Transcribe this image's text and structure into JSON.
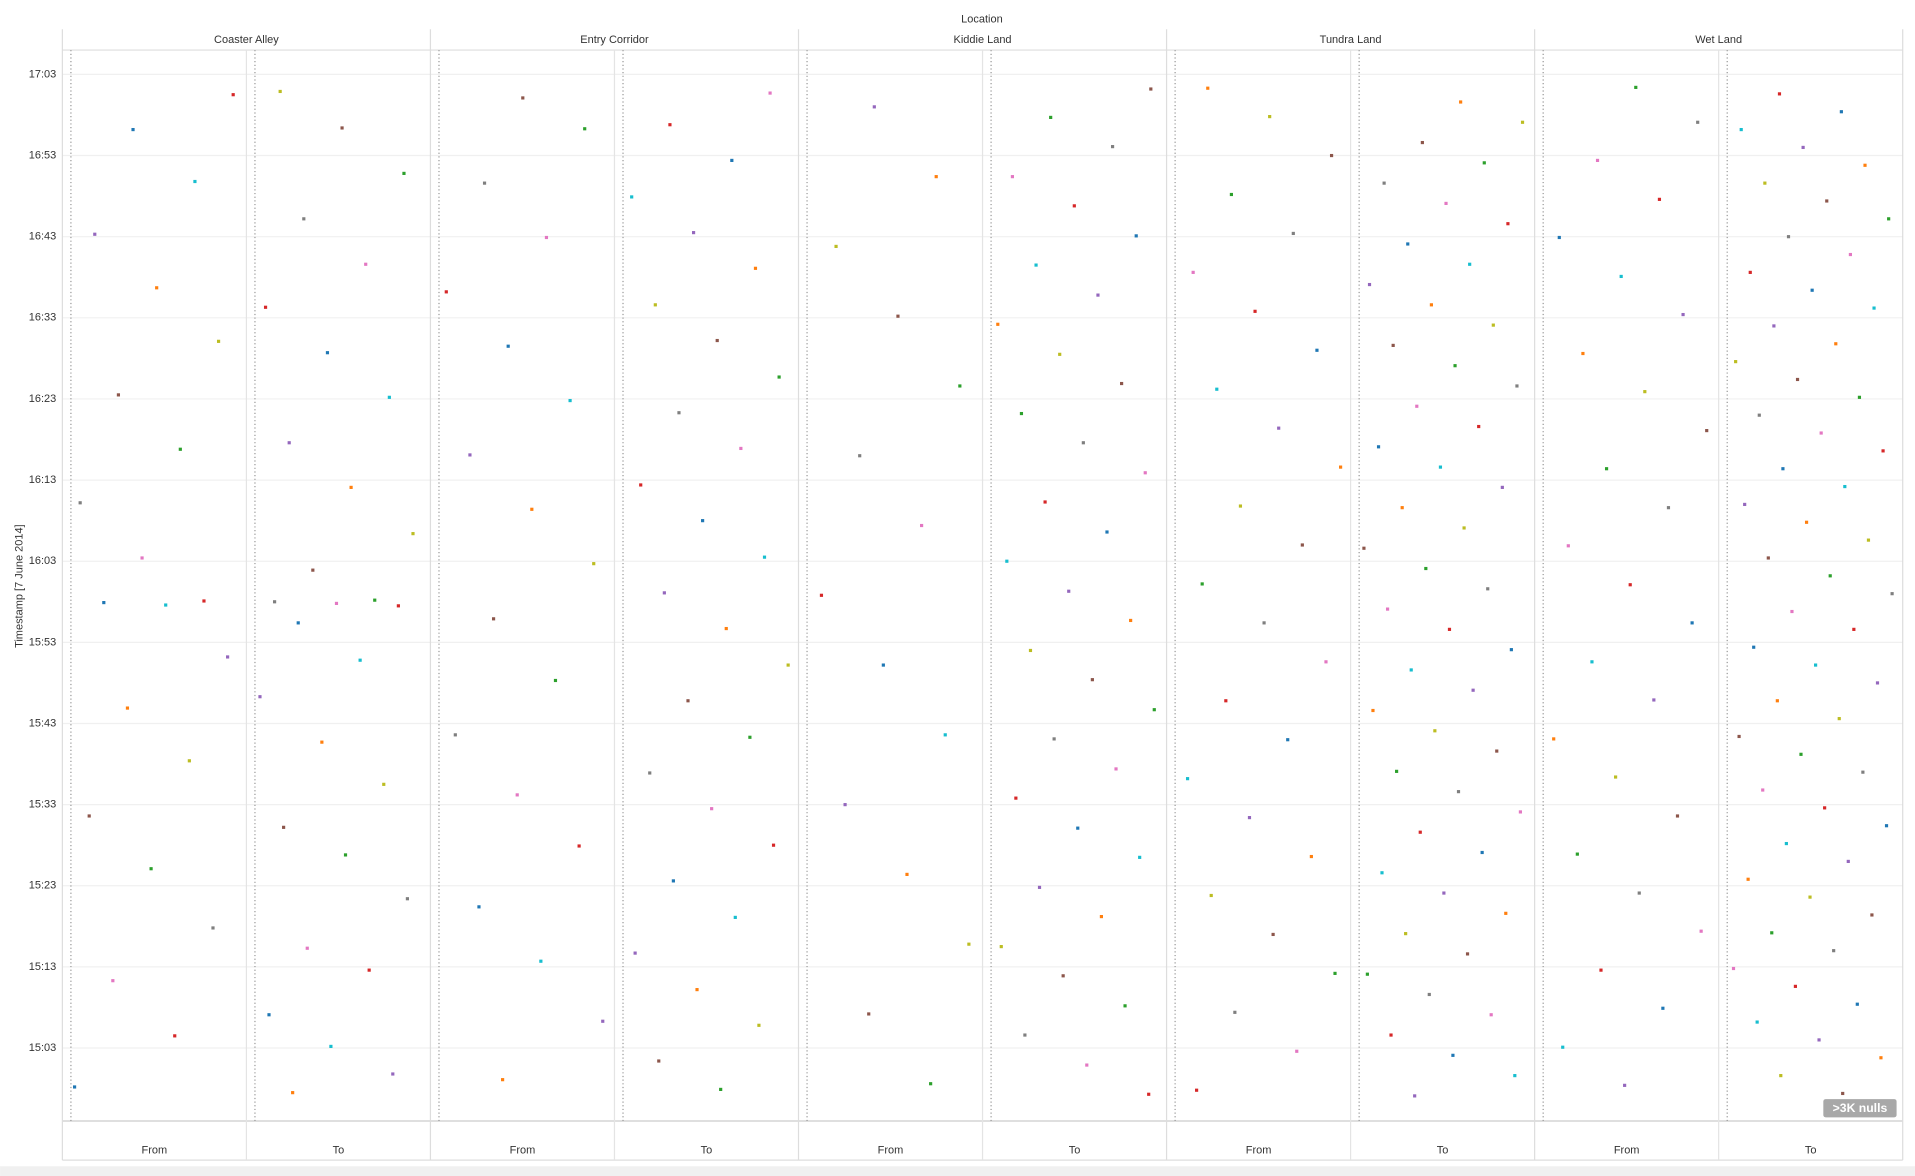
{
  "chart_data": {
    "type": "scatter",
    "title": "Location",
    "y_label": "Timestamp [7 June 2014]",
    "facets": [
      "Coaster Alley",
      "Entry Corridor",
      "Kiddie Land",
      "Tundra Land",
      "Wet Land"
    ],
    "subcolumns": [
      "From",
      "To"
    ],
    "ylim": [
      894,
      1026
    ],
    "yticks": [
      {
        "value": 903,
        "label": "15:03"
      },
      {
        "value": 913,
        "label": "15:13"
      },
      {
        "value": 923,
        "label": "15:23"
      },
      {
        "value": 933,
        "label": "15:33"
      },
      {
        "value": 943,
        "label": "15:43"
      },
      {
        "value": 953,
        "label": "15:53"
      },
      {
        "value": 963,
        "label": "16:03"
      },
      {
        "value": 973,
        "label": "16:13"
      },
      {
        "value": 983,
        "label": "16:23"
      },
      {
        "value": 993,
        "label": "16:33"
      },
      {
        "value": 1003,
        "label": "16:43"
      },
      {
        "value": 1013,
        "label": "16:53"
      },
      {
        "value": 1023,
        "label": "17:03"
      }
    ],
    "grid": true,
    "colors": [
      "#1f77b4",
      "#ff7f0e",
      "#2ca02c",
      "#d62728",
      "#9467bd",
      "#8c564b",
      "#e377c2",
      "#17becf",
      "#bcbd22",
      "#7f7f7f"
    ],
    "nulls_indicator": ">3K nulls",
    "panels": [
      {
        "from": [
          898.2,
          904.5,
          911.3,
          917.8,
          925.1,
          931.6,
          938.4,
          944.9,
          951.2,
          957.6,
          957.9,
          958.1,
          963.4,
          970.2,
          976.8,
          983.5,
          990.1,
          996.7,
          1003.3,
          1009.8,
          1016.2,
          1020.5
        ],
        "to": [
          897.5,
          899.8,
          903.2,
          907.1,
          912.6,
          915.3,
          921.4,
          926.8,
          930.2,
          935.5,
          940.7,
          946.3,
          950.8,
          955.4,
          957.5,
          957.8,
          958.0,
          958.2,
          961.9,
          966.4,
          972.1,
          977.6,
          983.2,
          988.7,
          994.3,
          999.6,
          1005.2,
          1010.8,
          1016.4,
          1020.9
        ]
      },
      {
        "from": [
          899.1,
          906.3,
          913.7,
          920.4,
          927.9,
          934.2,
          941.6,
          948.3,
          955.9,
          962.7,
          969.4,
          976.1,
          982.8,
          989.5,
          996.2,
          1002.9,
          1009.6,
          1016.3,
          1020.1
        ],
        "to": [
          897.9,
          901.4,
          905.8,
          910.2,
          914.7,
          919.1,
          923.6,
          928.0,
          932.5,
          936.9,
          941.3,
          945.8,
          950.2,
          954.7,
          959.1,
          963.5,
          968.0,
          972.4,
          976.9,
          981.3,
          985.7,
          990.2,
          994.6,
          999.1,
          1003.5,
          1007.9,
          1012.4,
          1016.8,
          1020.7
        ]
      },
      {
        "from": [
          898.6,
          907.2,
          915.8,
          924.4,
          933.0,
          941.6,
          950.2,
          958.8,
          967.4,
          976.0,
          984.6,
          993.2,
          1001.8,
          1010.4,
          1019.0
        ],
        "to": [
          897.3,
          900.9,
          904.6,
          908.2,
          911.9,
          915.5,
          919.2,
          922.8,
          926.5,
          930.1,
          933.8,
          937.4,
          941.1,
          944.7,
          948.4,
          952.0,
          955.7,
          959.3,
          963.0,
          966.6,
          970.3,
          973.9,
          977.6,
          981.2,
          984.9,
          988.5,
          992.2,
          995.8,
          999.5,
          1003.1,
          1006.8,
          1010.4,
          1014.1,
          1017.7,
          1021.2
        ]
      },
      {
        "from": [
          897.8,
          902.6,
          907.4,
          912.2,
          917.0,
          921.8,
          926.6,
          931.4,
          936.2,
          941.0,
          945.8,
          950.6,
          955.4,
          960.2,
          965.0,
          969.8,
          974.6,
          979.4,
          984.2,
          989.0,
          993.8,
          998.6,
          1003.4,
          1008.2,
          1013.0,
          1017.8,
          1021.3
        ],
        "to": [
          897.1,
          899.6,
          902.1,
          904.6,
          907.1,
          909.6,
          912.1,
          914.6,
          917.1,
          919.6,
          922.1,
          924.6,
          927.1,
          929.6,
          932.1,
          934.6,
          937.1,
          939.6,
          942.1,
          944.6,
          947.1,
          949.6,
          952.1,
          954.6,
          957.1,
          959.6,
          962.1,
          964.6,
          967.1,
          969.6,
          972.1,
          974.6,
          977.1,
          979.6,
          982.1,
          984.6,
          987.1,
          989.6,
          992.1,
          994.6,
          997.1,
          999.6,
          1002.1,
          1004.6,
          1007.1,
          1009.6,
          1012.1,
          1014.6,
          1017.1,
          1019.6
        ]
      },
      {
        "from": [
          898.4,
          903.1,
          907.9,
          912.6,
          917.4,
          922.1,
          926.9,
          931.6,
          936.4,
          941.1,
          945.9,
          950.6,
          955.4,
          960.1,
          964.9,
          969.6,
          974.4,
          979.1,
          983.9,
          988.6,
          993.4,
          998.1,
          1002.9,
          1007.6,
          1012.4,
          1017.1,
          1021.4
        ],
        "to": [
          897.4,
          899.6,
          901.8,
          904.0,
          906.2,
          908.4,
          910.6,
          912.8,
          915.0,
          917.2,
          919.4,
          921.6,
          923.8,
          926.0,
          928.2,
          930.4,
          932.6,
          934.8,
          937.0,
          939.2,
          941.4,
          943.6,
          945.8,
          948.0,
          950.2,
          952.4,
          954.6,
          956.8,
          959.0,
          961.2,
          963.4,
          965.6,
          967.8,
          970.0,
          972.2,
          974.4,
          976.6,
          978.8,
          981.0,
          983.2,
          985.4,
          987.6,
          989.8,
          992.0,
          994.2,
          996.4,
          998.6,
          1000.8,
          1003.0,
          1005.2,
          1007.4,
          1009.6,
          1011.8,
          1014.0,
          1016.2,
          1018.4,
          1020.6
        ]
      }
    ]
  }
}
